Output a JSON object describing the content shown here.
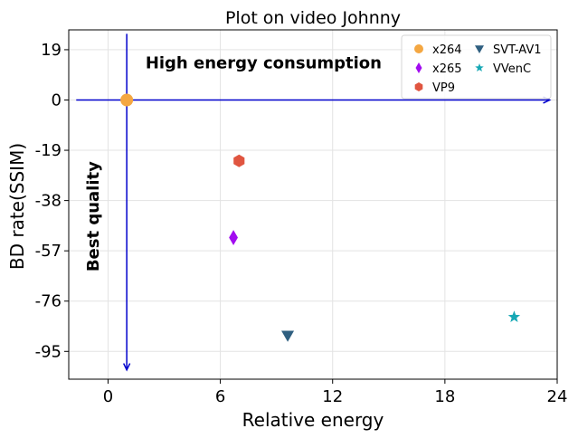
{
  "chart_data": {
    "type": "scatter",
    "title": "Plot on video Johnny",
    "xlabel": "Relative energy",
    "ylabel": "BD rate(SSIM)",
    "xlim": [
      -2.1,
      24
    ],
    "ylim": [
      -105.5,
      26.5
    ],
    "xticks": [
      0,
      6,
      12,
      18,
      24
    ],
    "yticks": [
      19,
      0,
      -19,
      -38,
      -57,
      -76,
      -95
    ],
    "grid": true,
    "legend_position": "top-right",
    "series": [
      {
        "name": "x264",
        "marker": "circle",
        "color": "#f4a742",
        "x": 1.0,
        "y": 0.0
      },
      {
        "name": "x265",
        "marker": "thin_diamond",
        "color": "#a20cf0",
        "x": 6.7,
        "y": -52.0
      },
      {
        "name": "VP9",
        "marker": "hexagon",
        "color": "#e05540",
        "x": 7.0,
        "y": -23.0
      },
      {
        "name": "SVT-AV1",
        "marker": "triangle_down",
        "color": "#2f5f80",
        "x": 9.6,
        "y": -89.0
      },
      {
        "name": "VVenC",
        "marker": "star",
        "color": "#17a8b5",
        "x": 21.7,
        "y": -82.0
      }
    ],
    "annotations": [
      {
        "text": "High energy consumption",
        "x": 2.0,
        "y": 14.0,
        "rotation": 0
      },
      {
        "text": "Best quality",
        "x": -0.5,
        "y": -44.0,
        "rotation": -90
      }
    ],
    "arrows": [
      {
        "from": [
          -1.7,
          0
        ],
        "to": [
          23.6,
          0
        ],
        "color": "#0000cc"
      },
      {
        "from": [
          1.0,
          25.0
        ],
        "to": [
          1.0,
          -102.0
        ],
        "color": "#0000cc"
      }
    ]
  }
}
